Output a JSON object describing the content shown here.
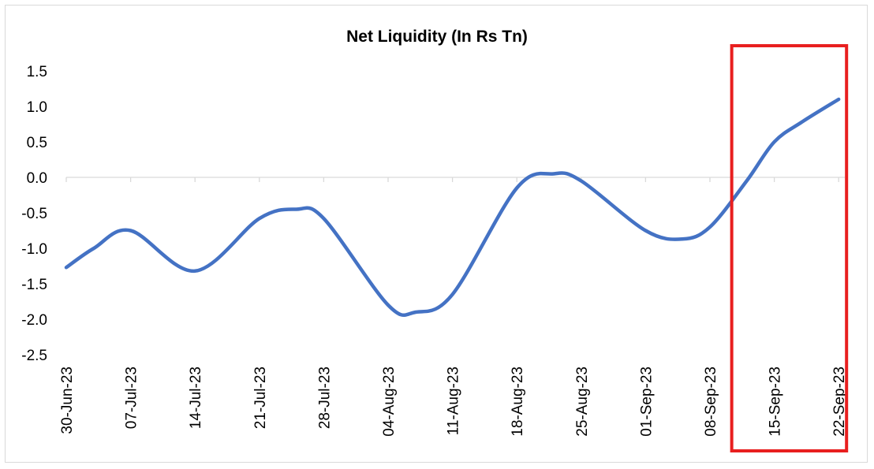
{
  "chart_data": {
    "type": "line",
    "title": "Net Liquidity (In Rs Tn)",
    "xlabel": "",
    "ylabel": "",
    "ylim": [
      -2.5,
      1.5
    ],
    "yticks": [
      "1.5",
      "1.0",
      "0.5",
      "0.0",
      "-0.5",
      "-1.0",
      "-1.5",
      "-2.0",
      "-2.5"
    ],
    "ytick_values": [
      1.5,
      1.0,
      0.5,
      0.0,
      -0.5,
      -1.0,
      -1.5,
      -2.0,
      -2.5
    ],
    "categories": [
      "30-Jun-23",
      "07-Jul-23",
      "14-Jul-23",
      "21-Jul-23",
      "28-Jul-23",
      "04-Aug-23",
      "11-Aug-23",
      "18-Aug-23",
      "25-Aug-23",
      "01-Sep-23",
      "08-Sep-23",
      "15-Sep-23",
      "22-Sep-23"
    ],
    "x": [
      "30-Jun-23",
      "03-Jul-23",
      "07-Jul-23",
      "14-Jul-23",
      "21-Jul-23",
      "25-Jul-23",
      "28-Jul-23",
      "04-Aug-23",
      "07-Aug-23",
      "11-Aug-23",
      "18-Aug-23",
      "22-Aug-23",
      "25-Aug-23",
      "01-Sep-23",
      "05-Sep-23",
      "08-Sep-23",
      "12-Sep-23",
      "15-Sep-23",
      "18-Sep-23",
      "22-Sep-23"
    ],
    "series": [
      {
        "values": [
          -1.27,
          -1.0,
          -0.75,
          -1.32,
          -0.58,
          -0.45,
          -0.58,
          -1.8,
          -1.9,
          -1.65,
          -0.15,
          0.05,
          -0.05,
          -0.75,
          -0.87,
          -0.7,
          -0.05,
          0.5,
          0.78,
          1.1
        ],
        "color": "#4472c4"
      }
    ],
    "grid": false,
    "legend": "none",
    "highlight": {
      "from": "12-Sep-23",
      "to": "22-Sep-23",
      "color": "#e81f1f"
    }
  }
}
